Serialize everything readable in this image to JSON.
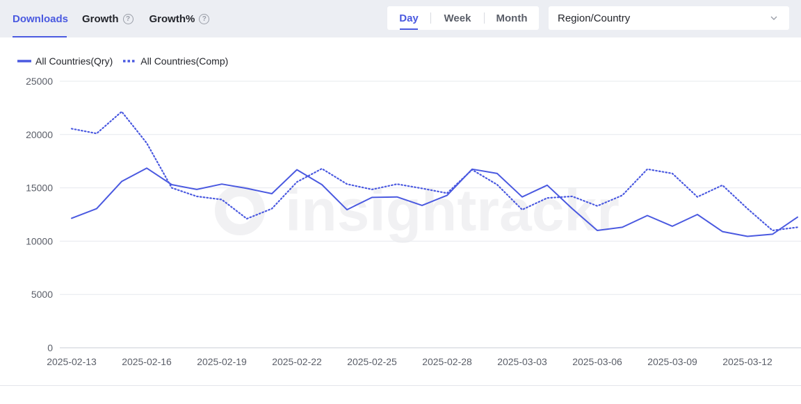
{
  "tabs": {
    "downloads": "Downloads",
    "growth": "Growth",
    "growth_pct": "Growth%",
    "help_glyph": "?"
  },
  "period": {
    "day": "Day",
    "week": "Week",
    "month": "Month",
    "selected": "Day"
  },
  "region": {
    "placeholder": "Region/Country"
  },
  "colors": {
    "accent": "#4a59e0",
    "series": "#4a59e0",
    "grid": "#e6e8ee",
    "watermark": "#f1f1f3"
  },
  "watermark_text": "insightrackr",
  "chart_data": {
    "type": "line",
    "x": [
      "2025-02-13",
      "2025-02-14",
      "2025-02-15",
      "2025-02-16",
      "2025-02-17",
      "2025-02-18",
      "2025-02-19",
      "2025-02-20",
      "2025-02-21",
      "2025-02-22",
      "2025-02-23",
      "2025-02-24",
      "2025-02-25",
      "2025-02-26",
      "2025-02-27",
      "2025-02-28",
      "2025-03-01",
      "2025-03-02",
      "2025-03-03",
      "2025-03-04",
      "2025-03-05",
      "2025-03-06",
      "2025-03-07",
      "2025-03-08",
      "2025-03-09",
      "2025-03-10",
      "2025-03-11",
      "2025-03-12",
      "2025-03-13",
      "2025-03-14"
    ],
    "x_ticks": [
      "2025-02-13",
      "2025-02-16",
      "2025-02-19",
      "2025-02-22",
      "2025-02-25",
      "2025-02-28",
      "2025-03-03",
      "2025-03-06",
      "2025-03-09",
      "2025-03-12"
    ],
    "series": [
      {
        "name": "All Countries(Qry)",
        "style": "solid",
        "values": [
          12150,
          13050,
          15600,
          16850,
          15300,
          14850,
          15350,
          14950,
          14450,
          16700,
          15300,
          12950,
          14100,
          14150,
          13350,
          14300,
          16750,
          16350,
          14150,
          15250,
          13050,
          11000,
          11300,
          12400,
          11400,
          12500,
          10900,
          10450,
          10650,
          12250
        ]
      },
      {
        "name": "All Countries(Comp)",
        "style": "dotted",
        "values": [
          20550,
          20100,
          22150,
          19200,
          15000,
          14200,
          13900,
          12100,
          13050,
          15550,
          16800,
          15350,
          14850,
          15350,
          14950,
          14500,
          16700,
          15300,
          12950,
          14050,
          14200,
          13300,
          14300,
          16750,
          16350,
          14150,
          15250,
          13050,
          11000,
          11300
        ]
      }
    ],
    "y_ticks": [
      0,
      5000,
      10000,
      15000,
      20000,
      25000
    ],
    "ylim": [
      0,
      25000
    ],
    "grid": true,
    "legend_position": "top-left"
  }
}
